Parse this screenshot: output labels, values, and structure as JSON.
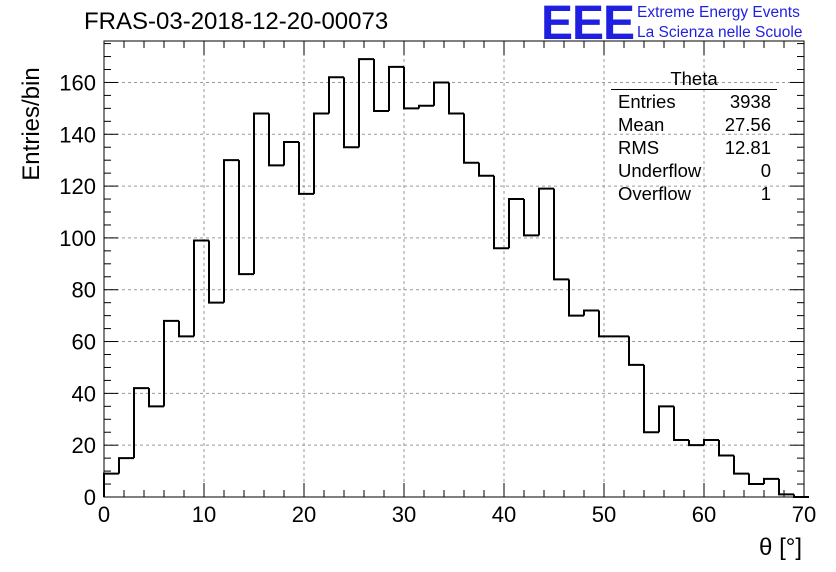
{
  "header": {
    "title": "FRAS-03-2018-12-20-00073",
    "logo_text": "EEE",
    "org_line1": "Extreme Energy Events",
    "org_line2": "La Scienza nelle Scuole",
    "logo_color": "#1f1fe0"
  },
  "stats_box": {
    "title": "Theta",
    "rows": [
      {
        "label": "Entries",
        "value": "3938"
      },
      {
        "label": "Mean",
        "value": "27.56"
      },
      {
        "label": "RMS",
        "value": "12.81"
      },
      {
        "label": "Underflow",
        "value": "0"
      },
      {
        "label": "Overflow",
        "value": "1"
      }
    ]
  },
  "chart_data": {
    "type": "bar",
    "histogram": true,
    "title": "FRAS-03-2018-12-20-00073",
    "xlabel": "θ [°]",
    "ylabel": "Entries/bin",
    "xlim": [
      0,
      70
    ],
    "ylim": [
      0,
      176
    ],
    "bin_width": 1.5,
    "x_ticks": [
      0,
      10,
      20,
      30,
      40,
      50,
      60,
      70
    ],
    "y_ticks": [
      0,
      20,
      40,
      60,
      80,
      100,
      120,
      140,
      160
    ],
    "grid": true,
    "line_color": "#000000",
    "bin_edges_start": 0,
    "values": [
      9,
      15,
      42,
      35,
      68,
      62,
      99,
      75,
      130,
      86,
      148,
      128,
      137,
      117,
      148,
      162,
      135,
      169,
      149,
      166,
      150,
      151,
      160,
      148,
      129,
      124,
      96,
      115,
      101,
      119,
      84,
      70,
      72,
      62,
      62,
      51,
      25,
      35,
      22,
      20,
      22,
      16,
      9,
      5,
      7,
      1,
      0
    ]
  }
}
